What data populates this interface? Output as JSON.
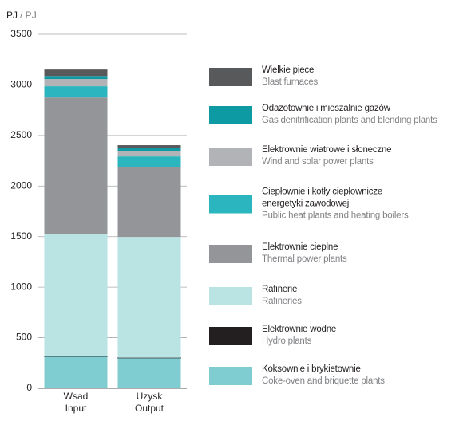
{
  "chart_data": {
    "type": "bar",
    "stacked": true,
    "y_label": "PJ",
    "y_label_en": "/ PJ",
    "categories": [
      "Wsad",
      "Uzysk"
    ],
    "categories_en": [
      "Input",
      "Output"
    ],
    "ylim": [
      0,
      3500
    ],
    "yticks": [
      0,
      500,
      1000,
      1500,
      2000,
      2500,
      3000,
      3500
    ],
    "grid": true,
    "series": [
      {
        "name": "Koksownie i brykietownie",
        "name_en": "Coke-oven and briquette plants",
        "color": "#80cdd1",
        "values": [
          315,
          300
        ]
      },
      {
        "name": "Elektrownie wodne",
        "name_en": "Hydro plants",
        "color": "#231f20",
        "values": [
          2,
          2
        ]
      },
      {
        "name": "Rafinerie",
        "name_en": "Rafineries",
        "color": "#bae3e4",
        "values": [
          1212,
          1195
        ]
      },
      {
        "name": "Elektrownie cieplne",
        "name_en": "Thermal power plants",
        "color": "#939598",
        "values": [
          1347,
          694
        ]
      },
      {
        "name": "Ciepłownie i kotły ciepłownicze energetyki zawodowej",
        "name_en": "Public heat plants and heating boilers",
        "color": "#2bb6bf",
        "values": [
          111,
          102
        ]
      },
      {
        "name": "Elektrownie wiatrowe i słoneczne",
        "name_en": "Wind and solar power plants",
        "color": "#b1b3b6",
        "values": [
          71,
          50
        ]
      },
      {
        "name": "Odazotownie i mieszalnie gazów",
        "name_en": "Gas denitrification plants and blending plants",
        "color": "#0e9aa3",
        "values": [
          30,
          30
        ]
      },
      {
        "name": "Wielkie piece",
        "name_en": "Blast furnaces",
        "color": "#58595b",
        "values": [
          64,
          31
        ]
      }
    ]
  }
}
